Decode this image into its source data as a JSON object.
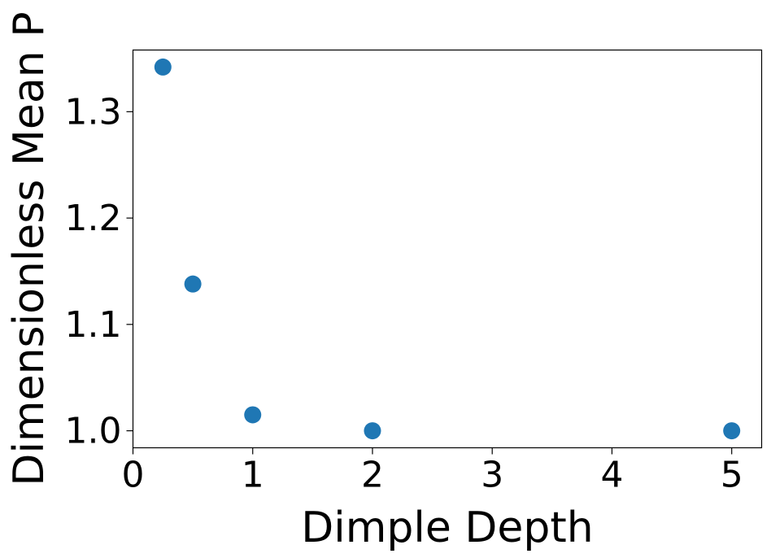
{
  "chart_data": {
    "type": "scatter",
    "title": "",
    "xlabel": "Dimple Depth",
    "ylabel": "Dimensionless Mean P",
    "xlim": [
      0,
      5.25
    ],
    "ylim": [
      0.984,
      1.358
    ],
    "xticks": [
      0,
      1,
      2,
      3,
      4,
      5
    ],
    "yticks": [
      1.0,
      1.1,
      1.2,
      1.3
    ],
    "xtick_labels": [
      "0",
      "1",
      "2",
      "3",
      "4",
      "5"
    ],
    "ytick_labels": [
      "1.0",
      "1.1",
      "1.2",
      "1.3"
    ],
    "grid": false,
    "legend": "none",
    "marker_color": "#1f77b4",
    "series": [
      {
        "x": [
          0.25,
          0.5,
          1,
          2,
          5
        ],
        "y": [
          1.342,
          1.138,
          1.015,
          1.0,
          1.0
        ]
      }
    ]
  }
}
